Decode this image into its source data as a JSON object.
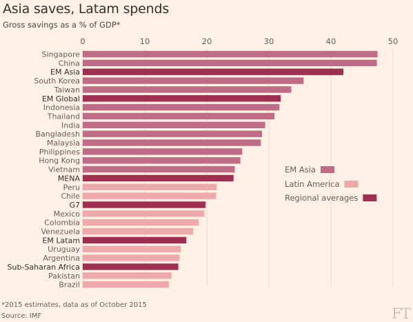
{
  "title": "Asia saves, Latam spends",
  "subtitle": "Gross savings as a % of GDP*",
  "note": "*2015 estimates, data as of October 2015",
  "source": "Source: IMF",
  "logo": "FT",
  "colors": {
    "EM Asia": "#bf6c86",
    "Latin America": "#eeaaaa",
    "Regional averages": "#9e2f50",
    "background": "#fff1e5",
    "grid": "#e6d9ce"
  },
  "chart_data": {
    "type": "bar",
    "orientation": "horizontal",
    "title": "Asia saves, Latam spends",
    "subtitle": "Gross savings as a % of GDP*",
    "xlim": [
      0,
      50
    ],
    "xticks": [
      0,
      10,
      20,
      30,
      40,
      50
    ],
    "grid": true,
    "legend_position": "right",
    "legend": [
      "EM Asia",
      "Latin America",
      "Regional averages"
    ],
    "categories": [
      "Singapore",
      "China",
      "EM Asia",
      "South Korea",
      "Taiwan",
      "EM Global",
      "Indonesia",
      "Thailand",
      "India",
      "Bangladesh",
      "Malaysia",
      "Philippines",
      "Hong Kong",
      "Vietnam",
      "MENA",
      "Peru",
      "Chile",
      "G7",
      "Mexico",
      "Colombia",
      "Venezuela",
      "EM Latam",
      "Uruguay",
      "Argentina",
      "Sub-Saharan Africa",
      "Pakistan",
      "Brazil"
    ],
    "values": [
      47.5,
      47.4,
      42.0,
      35.6,
      33.6,
      31.9,
      31.7,
      30.9,
      29.4,
      28.9,
      28.7,
      25.7,
      25.4,
      24.5,
      24.3,
      21.6,
      21.5,
      19.8,
      19.6,
      18.7,
      17.8,
      16.7,
      15.8,
      15.6,
      15.4,
      14.3,
      13.9
    ],
    "groups": [
      "EM Asia",
      "EM Asia",
      "Regional averages",
      "EM Asia",
      "EM Asia",
      "Regional averages",
      "EM Asia",
      "EM Asia",
      "EM Asia",
      "EM Asia",
      "EM Asia",
      "EM Asia",
      "EM Asia",
      "EM Asia",
      "Regional averages",
      "Latin America",
      "Latin America",
      "Regional averages",
      "Latin America",
      "Latin America",
      "Latin America",
      "Regional averages",
      "Latin America",
      "Latin America",
      "Regional averages",
      "Latin America",
      "Latin America"
    ]
  }
}
